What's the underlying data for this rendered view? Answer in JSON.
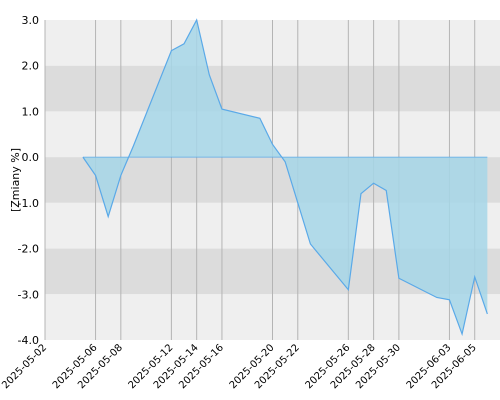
{
  "chart_data": {
    "type": "area",
    "xlabel": "",
    "ylabel": "[Zmiany %]",
    "ylim": [
      -4.0,
      3.0
    ],
    "yticks": [
      "3.0",
      "2.0",
      "1.0",
      "0.0",
      "-1.0",
      "-2.0",
      "-3.0",
      "-4.0"
    ],
    "ytick_values": [
      3,
      2,
      1,
      0,
      -1,
      -2,
      -3,
      -4
    ],
    "xticks": [
      "2025-05-02",
      "2025-05-06",
      "2025-05-08",
      "2025-05-12",
      "2025-05-14",
      "2025-05-16",
      "2025-05-20",
      "2025-05-22",
      "2025-05-26",
      "2025-05-28",
      "2025-05-30",
      "2025-06-03",
      "2025-06-05"
    ],
    "x": [
      "2025-05-05",
      "2025-05-06",
      "2025-05-07",
      "2025-05-08",
      "2025-05-09",
      "2025-05-12",
      "2025-05-13",
      "2025-05-14",
      "2025-05-15",
      "2025-05-16",
      "2025-05-19",
      "2025-05-20",
      "2025-05-21",
      "2025-05-22",
      "2025-05-23",
      "2025-05-26",
      "2025-05-27",
      "2025-05-28",
      "2025-05-29",
      "2025-05-30",
      "2025-06-02",
      "2025-06-03",
      "2025-06-04",
      "2025-06-05",
      "2025-06-06"
    ],
    "values": [
      0.0,
      -0.4,
      -1.3,
      -0.4,
      0.25,
      2.33,
      2.48,
      3.0,
      1.8,
      1.05,
      0.85,
      0.28,
      -0.1,
      -1.0,
      -1.9,
      -2.9,
      -0.8,
      -0.57,
      -0.73,
      -2.65,
      -3.07,
      -3.12,
      -3.87,
      -2.62,
      -3.43
    ],
    "grid": true,
    "colors": {
      "fill": "#a6d6e8",
      "line": "#5aa9e8",
      "band_light": "#efefef",
      "band_dark": "#dcdcdc",
      "gridline": "#b4b4b4"
    }
  }
}
